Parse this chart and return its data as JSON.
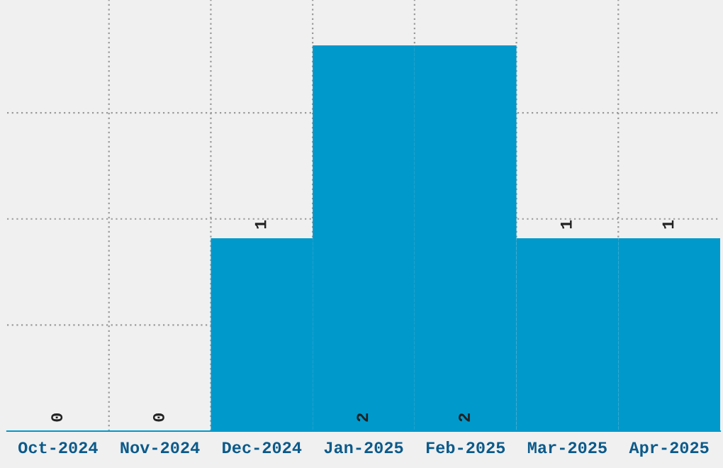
{
  "chart_data": {
    "type": "bar",
    "categories": [
      "Oct-2024",
      "Nov-2024",
      "Dec-2024",
      "Jan-2025",
      "Feb-2025",
      "Mar-2025",
      "Apr-2025"
    ],
    "values": [
      0,
      0,
      1,
      2,
      2,
      1,
      1
    ],
    "color": "#0099cc",
    "ylim": [
      0,
      2.235
    ],
    "yticks": [
      {
        "value": 0,
        "label": null
      },
      {
        "value": 0.55,
        "label": null
      },
      {
        "value": 1.1,
        "label": null
      },
      {
        "value": 1.65,
        "label": null
      }
    ],
    "tick_labels": "x",
    "grid": true,
    "data_labels": true
  }
}
